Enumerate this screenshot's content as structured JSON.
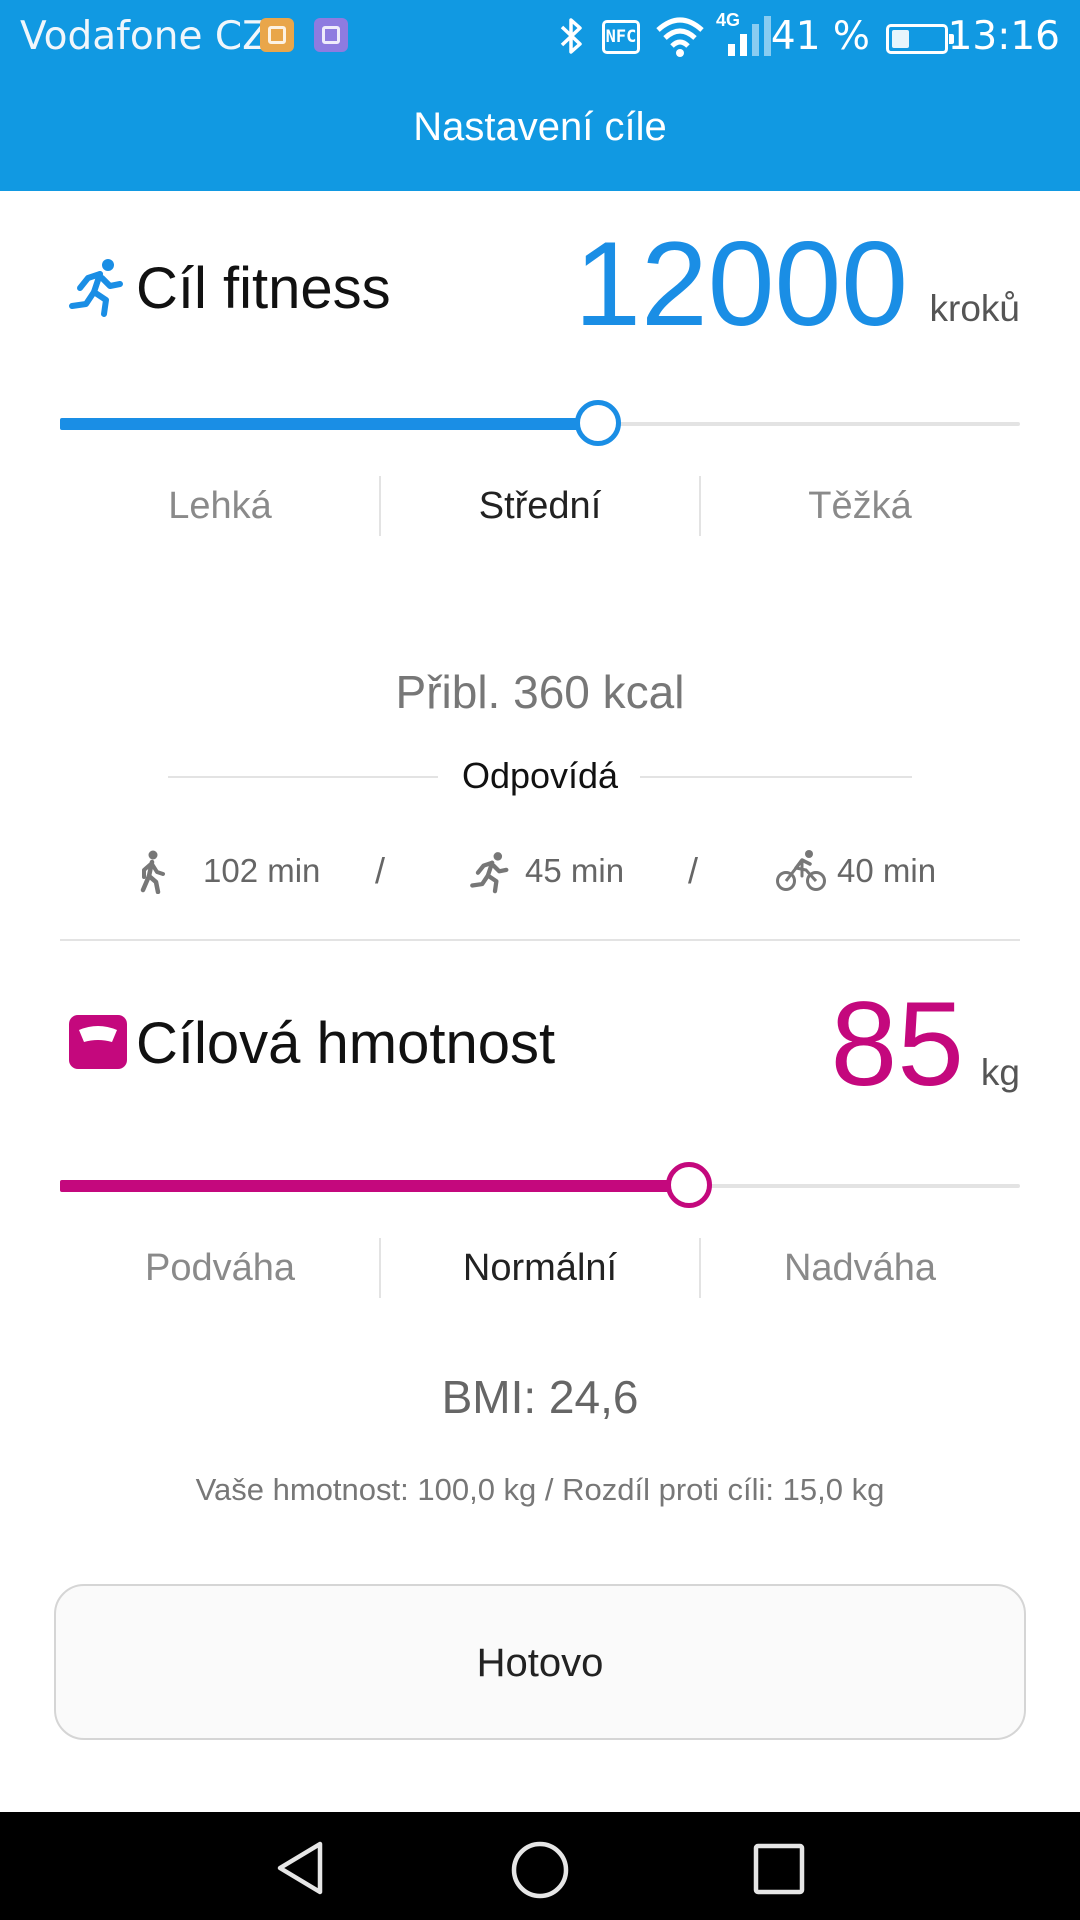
{
  "status_bar": {
    "carrier": "Vodafone CZ",
    "network": "4G",
    "battery_percent": "41 %",
    "battery_level": 0.41,
    "time": "13:16",
    "nfc": "NFC"
  },
  "header": {
    "title": "Nastavení cíle"
  },
  "fitness": {
    "title": "Cíl fitness",
    "value": "12000",
    "unit": "kroků",
    "slider_level": 0.56,
    "accent_color": "#1a8ee5",
    "levels": [
      "Lehká",
      "Střední",
      "Těžká"
    ],
    "active_level": "Střední",
    "kcal": "Přibl. 360 kcal",
    "equals_label": "Odpovídá",
    "activities": [
      {
        "icon": "walking-icon",
        "label": "102 min"
      },
      {
        "icon": "running-icon",
        "label": "45 min"
      },
      {
        "icon": "cycling-icon",
        "label": "40 min"
      }
    ],
    "separator": "/"
  },
  "weight": {
    "title": "Cílová hmotnost",
    "value": "85",
    "unit": "kg",
    "slider_level": 0.655,
    "accent_color": "#c4087d",
    "levels": [
      "Podváha",
      "Normální",
      "Nadváha"
    ],
    "active_level": "Normální",
    "bmi": "BMI: 24,6",
    "info": "Vaše hmotnost: 100,0 kg / Rozdíl proti cíli: 15,0 kg"
  },
  "done_button": {
    "label": "Hotovo"
  }
}
